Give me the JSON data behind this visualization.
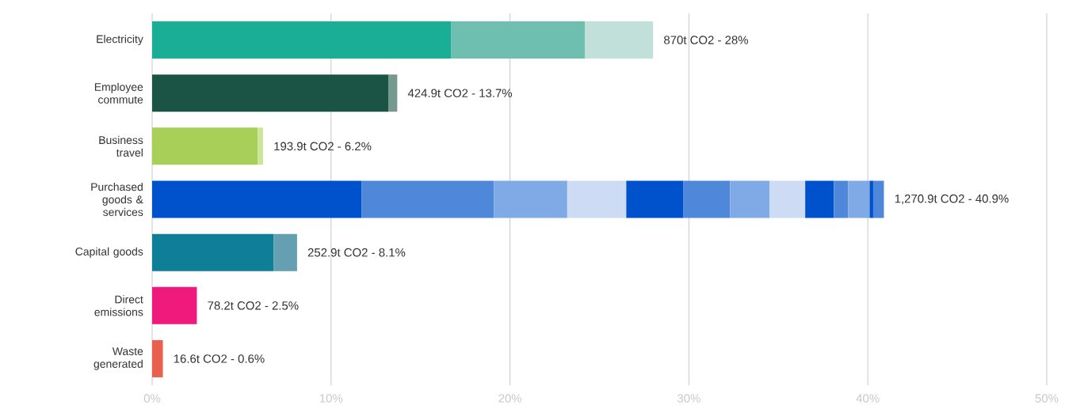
{
  "chart_data": {
    "type": "bar",
    "orientation": "horizontal",
    "stacked": true,
    "categories": [
      "Electricity",
      "Employee commute",
      "Business travel",
      "Purchased goods & services",
      "Capital goods",
      "Direct emissions",
      "Waste generated"
    ],
    "series": [
      {
        "values": [
          16.7,
          13.2,
          5.9,
          11.7,
          6.8,
          2.5,
          0.6
        ],
        "colors": [
          "#1aae97",
          "#1b5445",
          "#a8d058",
          "#0052cc",
          "#0e7f96",
          "#ef1a7c",
          "#e9604e"
        ]
      },
      {
        "values": [
          7.5,
          0.5,
          0.3,
          7.4,
          1.3,
          null,
          null
        ],
        "colors": [
          "#6fbfb0",
          "#76998d",
          "#cce59a",
          "#4f88db",
          "#659fb2",
          null,
          null
        ]
      },
      {
        "values": [
          3.8,
          null,
          null,
          4.1,
          null,
          null,
          null
        ],
        "colors": [
          "#c1e0da",
          null,
          null,
          "#80aae6",
          null,
          null,
          null
        ]
      },
      {
        "values": [
          null,
          null,
          null,
          3.3,
          null,
          null,
          null
        ],
        "colors": [
          null,
          null,
          null,
          "#cddcf4",
          null,
          null,
          null
        ]
      },
      {
        "values": [
          null,
          null,
          null,
          3.2,
          null,
          null,
          null
        ],
        "colors": [
          null,
          null,
          null,
          "#0052cc",
          null,
          null,
          null
        ]
      },
      {
        "values": [
          null,
          null,
          null,
          2.6,
          null,
          null,
          null
        ],
        "colors": [
          null,
          null,
          null,
          "#4f88db",
          null,
          null,
          null
        ]
      },
      {
        "values": [
          null,
          null,
          null,
          2.2,
          null,
          null,
          null
        ],
        "colors": [
          null,
          null,
          null,
          "#80aae6",
          null,
          null,
          null
        ]
      },
      {
        "values": [
          null,
          null,
          null,
          2.0,
          null,
          null,
          null
        ],
        "colors": [
          null,
          null,
          null,
          "#cddcf4",
          null,
          null,
          null
        ]
      },
      {
        "values": [
          null,
          null,
          null,
          1.6,
          null,
          null,
          null
        ],
        "colors": [
          null,
          null,
          null,
          "#0052cc",
          null,
          null,
          null
        ]
      },
      {
        "values": [
          null,
          null,
          null,
          0.8,
          null,
          null,
          null
        ],
        "colors": [
          null,
          null,
          null,
          "#4f88db",
          null,
          null,
          null
        ]
      },
      {
        "values": [
          null,
          null,
          null,
          1.2,
          null,
          null,
          null
        ],
        "colors": [
          null,
          null,
          null,
          "#80aae6",
          null,
          null,
          null
        ]
      },
      {
        "values": [
          null,
          null,
          null,
          0.2,
          null,
          null,
          null
        ],
        "colors": [
          null,
          null,
          null,
          "#0052cc",
          null,
          null,
          null
        ]
      },
      {
        "values": [
          null,
          null,
          null,
          0.6,
          null,
          null,
          null
        ],
        "colors": [
          null,
          null,
          null,
          "#4f88db",
          null,
          null,
          null
        ]
      }
    ],
    "totals": [
      "870t CO2 - 28%",
      "424.9t CO2 - 13.7%",
      "193.9t CO2 - 6.2%",
      "1,270.9t CO2 - 40.9%",
      "252.9t CO2 - 8.1%",
      "78.2t CO2 - 2.5%",
      "16.6t CO2 - 0.6%"
    ],
    "xlim": [
      0,
      50
    ],
    "xticks": [
      {
        "value": 0,
        "label": "0%"
      },
      {
        "value": 10,
        "label": "10%"
      },
      {
        "value": 20,
        "label": "20%"
      },
      {
        "value": 30,
        "label": "30%"
      },
      {
        "value": 40,
        "label": "40%"
      },
      {
        "value": 50,
        "label": "50%"
      }
    ],
    "grid": "x"
  }
}
